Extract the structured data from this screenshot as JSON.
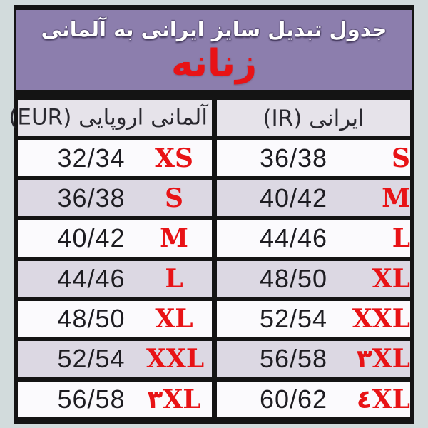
{
  "banner": {
    "title": "جدول تبدیل سایز ایرانی به آلمانی",
    "subtitle": "زنانه"
  },
  "table": {
    "columns": [
      {
        "id": "eur",
        "label": "آلمانی اروپایی (EUR)"
      },
      {
        "id": "ir",
        "label": "ایرانی (IR)"
      }
    ],
    "rows": [
      {
        "eur_size": "32/34",
        "eur_letter": "XS",
        "ir_size": "36/38",
        "ir_letter": "S"
      },
      {
        "eur_size": "36/38",
        "eur_letter": "S",
        "ir_size": "40/42",
        "ir_letter": "M"
      },
      {
        "eur_size": "40/42",
        "eur_letter": "M",
        "ir_size": "44/46",
        "ir_letter": "L"
      },
      {
        "eur_size": "44/46",
        "eur_letter": "L",
        "ir_size": "48/50",
        "ir_letter": "XL"
      },
      {
        "eur_size": "48/50",
        "eur_letter": "XL",
        "ir_size": "52/54",
        "ir_letter": "XXL"
      },
      {
        "eur_size": "52/54",
        "eur_letter": "XXL",
        "ir_size": "56/58",
        "ir_letter": "۳XL"
      },
      {
        "eur_size": "56/58",
        "eur_letter": "۳XL",
        "ir_size": "60/62",
        "ir_letter": "٤XL"
      }
    ]
  },
  "colors": {
    "page_bg": "#d2dbdc",
    "header_purple": "#8c7ead",
    "red": "#e81316",
    "row_white": "#fbfafd",
    "row_alt": "#dcd8e3",
    "header_row_bg": "#e6e3ea",
    "line": "#141414",
    "num_color": "#1d1c21"
  }
}
